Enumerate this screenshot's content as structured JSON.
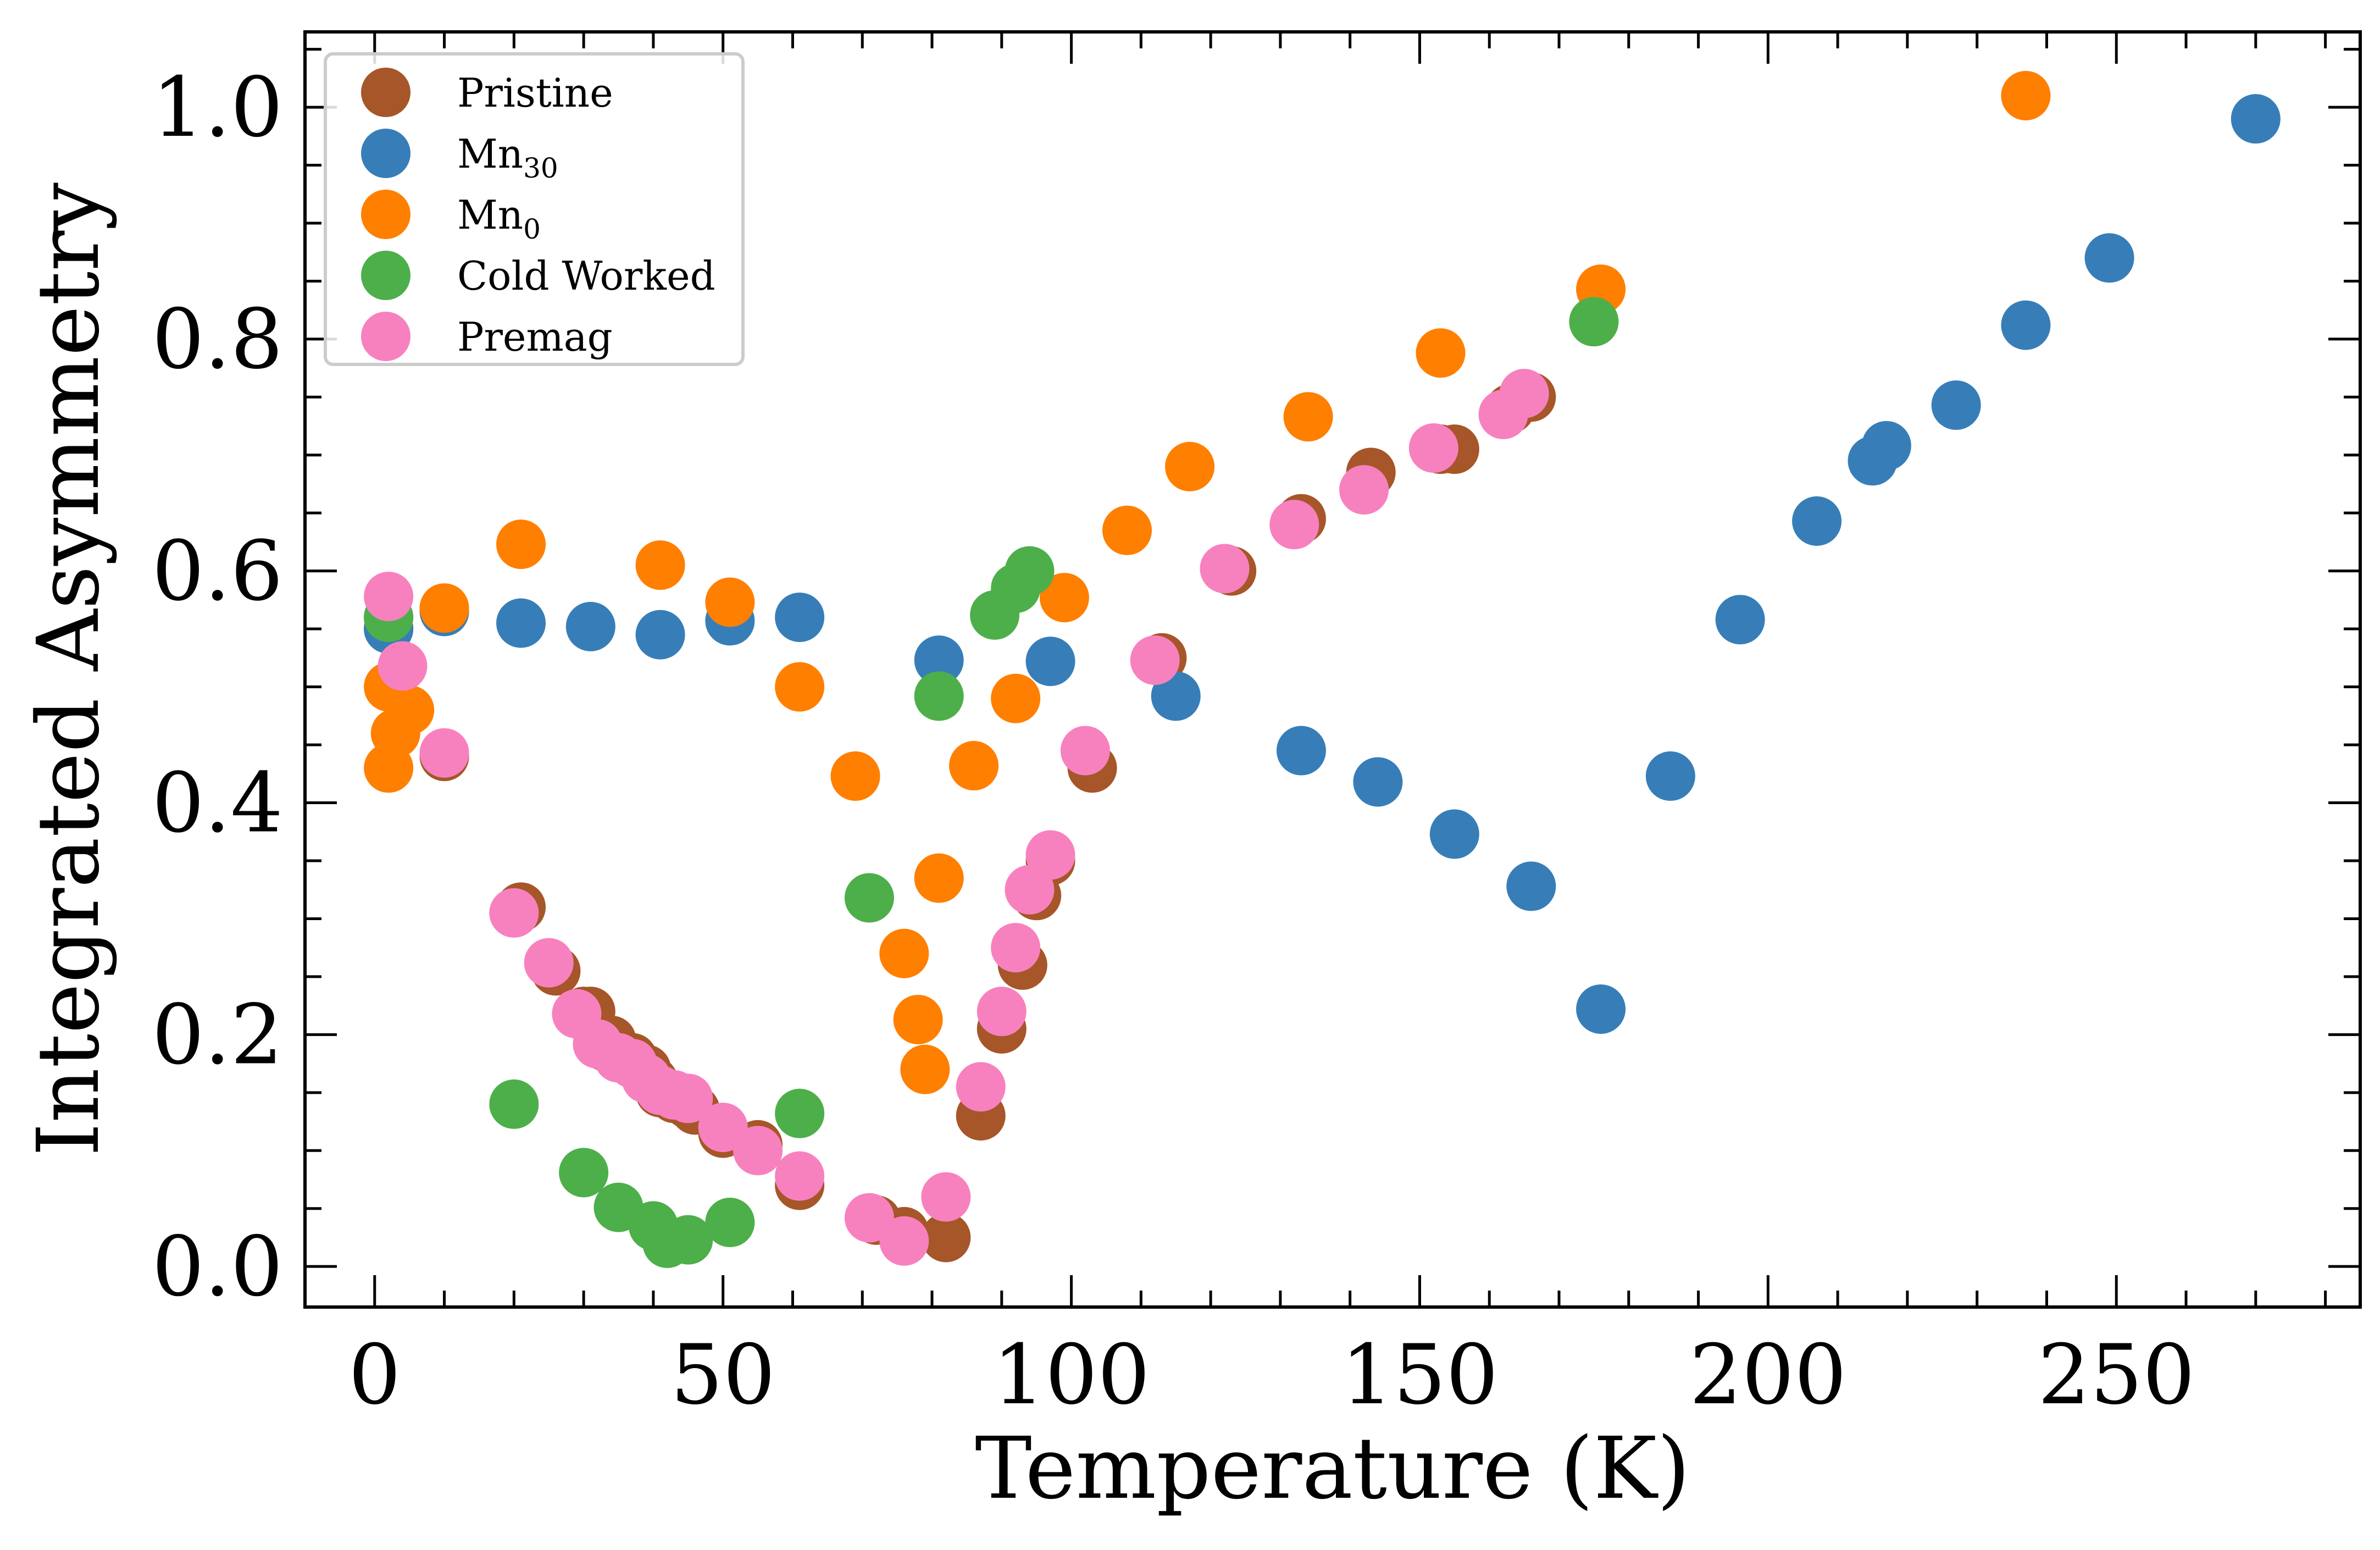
{
  "chart_data": {
    "type": "scatter",
    "title": "",
    "xlabel": "Temperature (K)",
    "ylabel": "Integrated Asymmetry",
    "xlim": [
      -10,
      285
    ],
    "ylim": [
      -0.035,
      1.065
    ],
    "xticks": [
      0,
      50,
      100,
      150,
      200,
      250
    ],
    "xtick_labels": [
      "0",
      "50",
      "100",
      "150",
      "200",
      "250"
    ],
    "yticks": [
      0.0,
      0.2,
      0.4,
      0.6,
      0.8,
      1.0
    ],
    "ytick_labels": [
      "0.0",
      "0.2",
      "0.4",
      "0.6",
      "0.8",
      "1.0"
    ],
    "x_minor_step": 10,
    "y_minor_step": 0.05,
    "grid": false,
    "legend_position": "top-left",
    "series": [
      {
        "name": "Pristine",
        "label_main": "Pristine",
        "label_sub": "",
        "color": "#a65628",
        "points": [
          [
            2,
            0.55
          ],
          [
            2,
            0.56
          ],
          [
            10,
            0.44
          ],
          [
            21,
            0.31
          ],
          [
            26,
            0.255
          ],
          [
            30,
            0.22
          ],
          [
            31,
            0.22
          ],
          [
            33,
            0.19
          ],
          [
            34,
            0.195
          ],
          [
            37,
            0.18
          ],
          [
            39,
            0.17
          ],
          [
            40,
            0.16
          ],
          [
            41,
            0.15
          ],
          [
            43,
            0.145
          ],
          [
            45,
            0.14
          ],
          [
            46,
            0.135
          ],
          [
            50,
            0.115
          ],
          [
            55,
            0.105
          ],
          [
            61,
            0.07
          ],
          [
            72,
            0.04
          ],
          [
            76,
            0.03
          ],
          [
            82,
            0.025
          ],
          [
            87,
            0.13
          ],
          [
            90,
            0.205
          ],
          [
            93,
            0.26
          ],
          [
            95,
            0.32
          ],
          [
            97,
            0.35
          ],
          [
            103,
            0.43
          ],
          [
            113,
            0.525
          ],
          [
            123,
            0.6
          ],
          [
            133,
            0.645
          ],
          [
            143,
            0.685
          ],
          [
            153,
            0.705
          ],
          [
            155,
            0.705
          ],
          [
            163,
            0.74
          ],
          [
            166,
            0.75
          ]
        ]
      },
      {
        "name": "Mn30",
        "label_main": "Mn",
        "label_sub": "30",
        "color": "#377eb8",
        "points": [
          [
            2,
            0.55
          ],
          [
            10,
            0.565
          ],
          [
            21,
            0.555
          ],
          [
            31,
            0.552
          ],
          [
            41,
            0.545
          ],
          [
            51,
            0.557
          ],
          [
            61,
            0.56
          ],
          [
            81,
            0.523
          ],
          [
            97,
            0.522
          ],
          [
            115,
            0.492
          ],
          [
            133,
            0.445
          ],
          [
            144,
            0.418
          ],
          [
            155,
            0.373
          ],
          [
            166,
            0.328
          ],
          [
            176,
            0.222
          ],
          [
            186,
            0.423
          ],
          [
            196,
            0.558
          ],
          [
            207,
            0.643
          ],
          [
            215,
            0.695
          ],
          [
            217,
            0.708
          ],
          [
            227,
            0.743
          ],
          [
            237,
            0.812
          ],
          [
            249,
            0.87
          ],
          [
            270,
            0.99
          ]
        ]
      },
      {
        "name": "Mn0",
        "label_main": "Mn",
        "label_sub": "0",
        "color": "#ff7f00",
        "points": [
          [
            2,
            0.43
          ],
          [
            2,
            0.5
          ],
          [
            3,
            0.46
          ],
          [
            5,
            0.48
          ],
          [
            10,
            0.568
          ],
          [
            21,
            0.623
          ],
          [
            41,
            0.605
          ],
          [
            51,
            0.573
          ],
          [
            61,
            0.5
          ],
          [
            69,
            0.423
          ],
          [
            76,
            0.27
          ],
          [
            78,
            0.213
          ],
          [
            79,
            0.17
          ],
          [
            81,
            0.335
          ],
          [
            86,
            0.432
          ],
          [
            92,
            0.49
          ],
          [
            99,
            0.577
          ],
          [
            108,
            0.635
          ],
          [
            117,
            0.69
          ],
          [
            134,
            0.733
          ],
          [
            153,
            0.788
          ],
          [
            176,
            0.843
          ],
          [
            237,
            1.01
          ]
        ]
      },
      {
        "name": "Cold Worked",
        "label_main": "Cold Worked",
        "label_sub": "",
        "color": "#4daf4a",
        "points": [
          [
            2,
            0.56
          ],
          [
            20,
            0.14
          ],
          [
            30,
            0.081
          ],
          [
            35,
            0.051
          ],
          [
            40,
            0.035
          ],
          [
            42,
            0.02
          ],
          [
            45,
            0.023
          ],
          [
            51,
            0.038
          ],
          [
            61,
            0.132
          ],
          [
            71,
            0.318
          ],
          [
            81,
            0.492
          ],
          [
            89,
            0.562
          ],
          [
            92,
            0.585
          ],
          [
            94,
            0.6
          ],
          [
            175,
            0.815
          ]
        ]
      },
      {
        "name": "Premag",
        "label_main": "Premag",
        "label_sub": "",
        "color": "#f781bf",
        "points": [
          [
            2,
            0.578
          ],
          [
            4,
            0.518
          ],
          [
            10,
            0.443
          ],
          [
            20,
            0.305
          ],
          [
            25,
            0.262
          ],
          [
            29,
            0.218
          ],
          [
            32,
            0.192
          ],
          [
            35,
            0.18
          ],
          [
            37,
            0.175
          ],
          [
            39,
            0.162
          ],
          [
            41,
            0.152
          ],
          [
            43,
            0.148
          ],
          [
            45,
            0.145
          ],
          [
            50,
            0.12
          ],
          [
            55,
            0.1
          ],
          [
            61,
            0.078
          ],
          [
            71,
            0.042
          ],
          [
            76,
            0.022
          ],
          [
            82,
            0.06
          ],
          [
            87,
            0.155
          ],
          [
            90,
            0.22
          ],
          [
            92,
            0.275
          ],
          [
            94,
            0.325
          ],
          [
            97,
            0.355
          ],
          [
            102,
            0.445
          ],
          [
            112,
            0.523
          ],
          [
            122,
            0.602
          ],
          [
            132,
            0.64
          ],
          [
            142,
            0.67
          ],
          [
            152,
            0.706
          ],
          [
            162,
            0.735
          ],
          [
            165,
            0.753
          ]
        ]
      }
    ]
  }
}
